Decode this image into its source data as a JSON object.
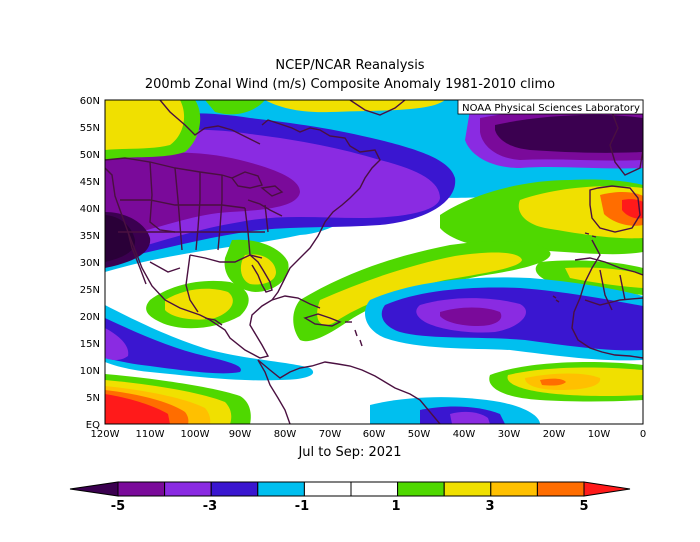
{
  "title": "NCEP/NCAR Reanalysis",
  "subtitle": "200mb Zonal Wind (m/s) Composite Anomaly 1981-2010 climo",
  "credit": "NOAA Physical Sciences Laboratory",
  "period": "Jul to Sep: 2021",
  "lat_labels": [
    "60N",
    "55N",
    "50N",
    "45N",
    "40N",
    "35N",
    "30N",
    "25N",
    "20N",
    "15N",
    "10N",
    "5N",
    "EQ"
  ],
  "lon_labels": [
    "120W",
    "110W",
    "100W",
    "90W",
    "80W",
    "70W",
    "60W",
    "50W",
    "40W",
    "30W",
    "20W",
    "10W",
    "0"
  ],
  "colorbar": {
    "colors": [
      "#3b0050",
      "#7a0a9a",
      "#8a2be2",
      "#3a16d0",
      "#00bfef",
      "#ffffff",
      "#ffffff",
      "#4fd800",
      "#f0e000",
      "#ffc000",
      "#ff6d00",
      "#ff1a1a"
    ],
    "tick_labels": [
      "-5",
      "-3",
      "-1",
      "1",
      "3",
      "5"
    ]
  },
  "palette": {
    "dark_purple": "#3b0050",
    "purple": "#7a0a9a",
    "violet": "#8a2be2",
    "blue": "#3a16d0",
    "cyan": "#00bfef",
    "green": "#4fd800",
    "yellow": "#f0e000",
    "orange": "#ffc000",
    "dark_orange": "#ff6d00",
    "red": "#ff1a1a",
    "coast": "#4a1040"
  }
}
